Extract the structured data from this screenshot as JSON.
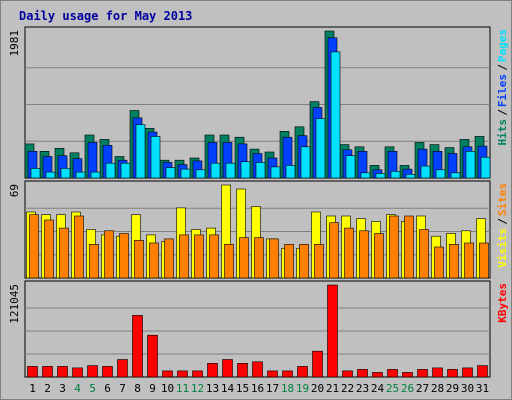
{
  "title": "Daily usage for May 2013",
  "colors": {
    "background": "#c0c0c0",
    "border": "#808080",
    "title": "#0000a0",
    "pages": "#00e0ff",
    "files": "#0040ff",
    "hits": "#008060",
    "visits": "#ffff00",
    "sites": "#ff8000",
    "kbytes": "#ff0000",
    "weekend": "#008040",
    "gridline": "#808080",
    "legend_separator": "#000000"
  },
  "chart_data": [
    {
      "type": "bar",
      "panel": "hits-files-pages",
      "y_max_label": "1981",
      "ylim": [
        0,
        1981
      ],
      "legend": [
        "Pages",
        "Files",
        "Hits"
      ],
      "x": [
        "1",
        "2",
        "3",
        "4",
        "5",
        "6",
        "7",
        "8",
        "9",
        "10",
        "11",
        "12",
        "13",
        "14",
        "15",
        "16",
        "17",
        "18",
        "19",
        "20",
        "21",
        "22",
        "23",
        "24",
        "25",
        "26",
        "27",
        "28",
        "29",
        "30",
        "31"
      ],
      "weekend_days": [
        "4",
        "5",
        "11",
        "12",
        "18",
        "19",
        "25",
        "26"
      ],
      "series": [
        {
          "name": "Hits",
          "values": [
            460,
            360,
            400,
            340,
            580,
            520,
            290,
            910,
            670,
            240,
            240,
            270,
            580,
            580,
            550,
            390,
            350,
            630,
            690,
            1030,
            1981,
            450,
            420,
            170,
            420,
            170,
            480,
            450,
            410,
            520,
            560
          ]
        },
        {
          "name": "Files",
          "values": [
            360,
            290,
            300,
            260,
            480,
            440,
            240,
            810,
            620,
            210,
            180,
            230,
            480,
            480,
            460,
            330,
            270,
            550,
            570,
            950,
            1890,
            380,
            360,
            110,
            360,
            120,
            390,
            360,
            330,
            420,
            430
          ]
        },
        {
          "name": "Pages",
          "values": [
            130,
            80,
            130,
            80,
            80,
            200,
            200,
            720,
            560,
            140,
            120,
            110,
            200,
            200,
            220,
            210,
            150,
            170,
            420,
            800,
            1700,
            300,
            70,
            60,
            90,
            50,
            160,
            110,
            70,
            360,
            280
          ]
        }
      ]
    },
    {
      "type": "bar",
      "panel": "visits-sites",
      "y_max_label": "69",
      "ylim": [
        0,
        69
      ],
      "legend": [
        "Sites",
        "Visits"
      ],
      "x": [
        "1",
        "2",
        "3",
        "4",
        "5",
        "6",
        "7",
        "8",
        "9",
        "10",
        "11",
        "12",
        "13",
        "14",
        "15",
        "16",
        "17",
        "18",
        "19",
        "20",
        "21",
        "22",
        "23",
        "24",
        "25",
        "26",
        "27",
        "28",
        "29",
        "30",
        "31"
      ],
      "series": [
        {
          "name": "Visits",
          "values": [
            49,
            47,
            47,
            49,
            36,
            32,
            31,
            47,
            32,
            27,
            52,
            36,
            37,
            69,
            66,
            53,
            29,
            22,
            22,
            49,
            46,
            46,
            44,
            42,
            47,
            42,
            46,
            31,
            33,
            35,
            44
          ]
        },
        {
          "name": "Sites",
          "values": [
            47,
            43,
            37,
            46,
            25,
            35,
            33,
            28,
            26,
            29,
            32,
            32,
            32,
            25,
            30,
            30,
            29,
            25,
            25,
            25,
            41,
            37,
            35,
            33,
            46,
            46,
            36,
            23,
            25,
            26,
            26
          ]
        }
      ]
    },
    {
      "type": "bar",
      "panel": "kbytes",
      "y_max_label": "121045",
      "ylim": [
        0,
        121045
      ],
      "legend": [
        "KBytes"
      ],
      "x": [
        "1",
        "2",
        "3",
        "4",
        "5",
        "6",
        "7",
        "8",
        "9",
        "10",
        "11",
        "12",
        "13",
        "14",
        "15",
        "16",
        "17",
        "18",
        "19",
        "20",
        "21",
        "22",
        "23",
        "24",
        "25",
        "26",
        "27",
        "28",
        "29",
        "30",
        "31"
      ],
      "series": [
        {
          "name": "KBytes",
          "values": [
            14000,
            14000,
            14000,
            12000,
            15000,
            14000,
            23000,
            81000,
            55000,
            8000,
            8000,
            8000,
            18000,
            23000,
            18000,
            20000,
            8000,
            8000,
            14000,
            34000,
            121045,
            8000,
            10000,
            6000,
            10000,
            6000,
            10000,
            12000,
            10000,
            12000,
            15000
          ]
        }
      ]
    }
  ]
}
